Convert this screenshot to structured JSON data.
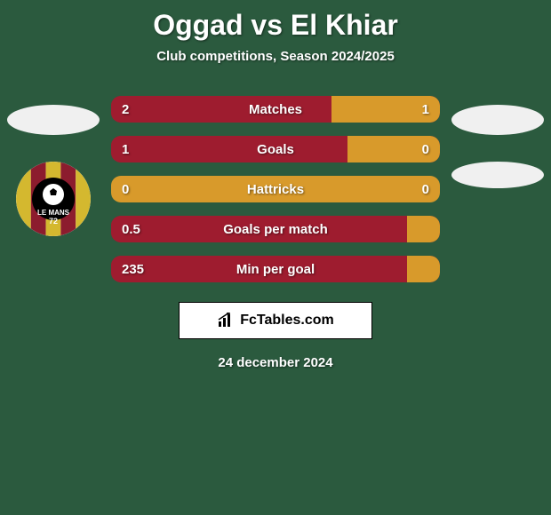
{
  "background_color": "#2b5a3e",
  "text_color": "#ffffff",
  "title": "Oggad vs El Khiar",
  "subtitle": "Club competitions, Season 2024/2025",
  "left_color": "#9e1c2f",
  "right_color": "#d89a2b",
  "ellipse_color": "#f0f0f0",
  "bars": [
    {
      "label": "Matches",
      "left_val": "2",
      "right_val": "1",
      "left_pct": 67
    },
    {
      "label": "Goals",
      "left_val": "1",
      "right_val": "0",
      "left_pct": 72
    },
    {
      "label": "Hattricks",
      "left_val": "0",
      "right_val": "0",
      "left_pct": 0
    },
    {
      "label": "Goals per match",
      "left_val": "0.5",
      "right_val": "",
      "left_pct": 90
    },
    {
      "label": "Min per goal",
      "left_val": "235",
      "right_val": "",
      "left_pct": 90
    }
  ],
  "footer_brand": "FcTables.com",
  "date_text": "24 december 2024",
  "badge": {
    "stripes": [
      "#d4b82f",
      "#8c1c2e",
      "#d4b82f",
      "#8c1c2e",
      "#d4b82f"
    ],
    "center_bg": "#000",
    "ball_color": "#fff",
    "text": "LE MANS",
    "sub": "72"
  }
}
